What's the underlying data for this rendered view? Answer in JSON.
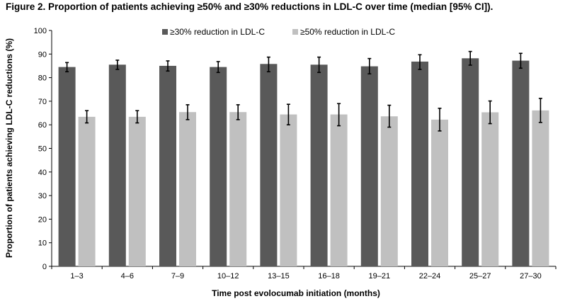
{
  "chart_data": {
    "type": "bar",
    "title": "Figure 2. Proportion of patients achieving ≥50% and ≥30% reductions in LDL-C over time (median [95% CI]).",
    "xlabel": "Time post evolocumab initiation (months)",
    "ylabel": "Proportion of patients achieving LDL-C reductions (%)",
    "ylim": [
      0,
      100
    ],
    "yticks": [
      0,
      10,
      20,
      30,
      40,
      50,
      60,
      70,
      80,
      90,
      100
    ],
    "grid": false,
    "legend_position": "top",
    "categories": [
      "1–3",
      "4–6",
      "7–9",
      "10–12",
      "13–15",
      "16–18",
      "19–21",
      "22–24",
      "25–27",
      "27–30"
    ],
    "series": [
      {
        "name": "≥30% reduction in LDL-C",
        "color": "#595959",
        "values": [
          84.5,
          85.5,
          85.0,
          84.5,
          85.8,
          85.5,
          84.8,
          86.8,
          88.2,
          87.2
        ],
        "ci_low": [
          82.5,
          83.5,
          82.8,
          82.2,
          82.5,
          82.2,
          81.6,
          83.5,
          85.3,
          84.0
        ],
        "ci_high": [
          86.4,
          87.4,
          87.1,
          86.8,
          88.7,
          88.7,
          88.1,
          89.7,
          91.1,
          90.3
        ]
      },
      {
        "name": "≥50% reduction in LDL-C",
        "color": "#c0c0c0",
        "values": [
          63.4,
          63.4,
          65.4,
          65.4,
          64.4,
          64.4,
          63.6,
          62.2,
          65.3,
          66.1
        ],
        "ci_low": [
          60.8,
          60.8,
          62.2,
          62.2,
          60.0,
          59.6,
          59.0,
          57.4,
          60.5,
          61.0
        ],
        "ci_high": [
          66.0,
          66.0,
          68.5,
          68.5,
          68.7,
          69.0,
          68.3,
          67.0,
          70.1,
          71.2
        ]
      }
    ]
  }
}
